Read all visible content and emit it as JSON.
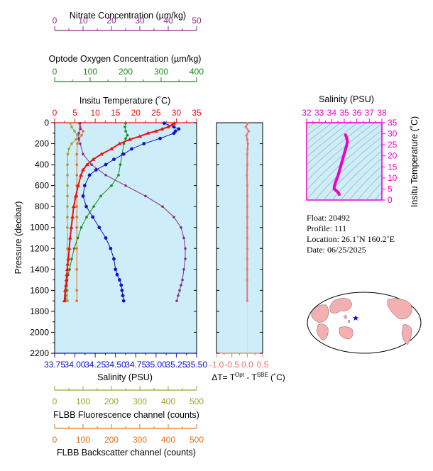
{
  "colors": {
    "nitrate": "#8b2a8b",
    "oxygen": "#1a8a1a",
    "temperature": "#ee1111",
    "salinity": "#1111cc",
    "fluorescence": "#a0a030",
    "backscatter": "#e0701a",
    "delta": "#f07070",
    "ts": "#ee00cc",
    "panel_bg": "#cdeef8",
    "map_land": "#f4b0b0",
    "map_star": "#0000cc"
  },
  "axes": {
    "nitrate": {
      "title": "Nitrate Concentration (µm/kg)",
      "ticks": [
        "0",
        "10",
        "20",
        "30",
        "40",
        "50"
      ],
      "range": [
        0,
        50
      ]
    },
    "oxygen": {
      "title": "Optode Oxygen Concentration (µm/kg)",
      "ticks": [
        "0",
        "100",
        "200",
        "300",
        "400"
      ],
      "range": [
        0,
        400
      ]
    },
    "temperature": {
      "title": "Insitu Temperature (˚C)",
      "ticks": [
        "0",
        "5",
        "10",
        "15",
        "20",
        "25",
        "30",
        "35"
      ],
      "range": [
        0,
        35
      ]
    },
    "pressure": {
      "title": "Pressure (decibar)",
      "ticks": [
        "0",
        "200",
        "400",
        "600",
        "800",
        "1000",
        "1200",
        "1400",
        "1600",
        "1800",
        "2000",
        "2200"
      ],
      "range": [
        0,
        2200
      ]
    },
    "salinity": {
      "title": "Salinity (PSU)",
      "ticks": [
        "33.75",
        "34.00",
        "34.25",
        "34.50",
        "34.75",
        "35.00",
        "35.25",
        "35.50"
      ],
      "range": [
        33.75,
        35.5
      ]
    },
    "fluorescence": {
      "title": "FLBB Fluorescence channel (counts)",
      "ticks": [
        "0",
        "100",
        "200",
        "300",
        "400",
        "500"
      ],
      "range": [
        0,
        500
      ]
    },
    "backscatter": {
      "title": "FLBB Backscatter channel (counts)",
      "ticks": [
        "0",
        "100",
        "200",
        "300",
        "400",
        "500"
      ],
      "range": [
        0,
        500
      ]
    },
    "delta": {
      "title": "ΔT= T",
      "sup1": "Opt",
      "mid": " - T",
      "sup2": "SBE",
      "tail": " (˚C)",
      "ticks": [
        "-1.0",
        "-0.5",
        "0.0",
        "0.5"
      ],
      "range": [
        -1.0,
        0.5
      ]
    },
    "ts_salinity": {
      "title": "Salinity (PSU)",
      "ticks": [
        "32",
        "33",
        "34",
        "35",
        "36",
        "37",
        "38"
      ],
      "range": [
        32,
        38
      ]
    },
    "ts_temperature": {
      "title": "Insitu Temperature (˚C)",
      "ticks": [
        "0",
        "5",
        "10",
        "15",
        "20",
        "25",
        "30",
        "35"
      ],
      "range": [
        0,
        35
      ]
    }
  },
  "info": {
    "float": "Float:  20492",
    "profile": "Profile:  111",
    "location": "Location:  26.1˚N  160.2˚E",
    "date": "Date:  06/25/2025"
  },
  "chart_data": [
    {
      "type": "line",
      "panel": "profiles",
      "ylabel": "Pressure (decibar)",
      "ylim": [
        2200,
        0
      ],
      "series": [
        {
          "name": "Insitu Temperature (˚C)",
          "axis": "temperature",
          "x": [
            29.5,
            29.0,
            28.0,
            26.5,
            25.0,
            23.0,
            21.0,
            18.5,
            16.0,
            14.0,
            11.5,
            9.5,
            8.0,
            7.0,
            6.5,
            5.8,
            5.2,
            4.7,
            4.4,
            4.1,
            3.8,
            3.6,
            3.4,
            3.2,
            3.1,
            3.0,
            2.9,
            2.8,
            2.6,
            2.4
          ],
          "y": [
            5,
            20,
            40,
            60,
            80,
            100,
            130,
            160,
            200,
            250,
            300,
            350,
            400,
            450,
            500,
            600,
            700,
            800,
            900,
            1000,
            1100,
            1200,
            1300,
            1350,
            1400,
            1450,
            1500,
            1550,
            1600,
            1700
          ]
        },
        {
          "name": "Salinity (PSU)",
          "axis": "salinity",
          "x": [
            35.1,
            35.22,
            35.28,
            35.24,
            35.22,
            35.05,
            34.85,
            34.7,
            34.6,
            34.48,
            34.38,
            34.26,
            34.18,
            34.12,
            34.1,
            34.14,
            34.22,
            34.3,
            34.38,
            34.44,
            34.48,
            34.5,
            34.52,
            34.55,
            34.57,
            34.58,
            34.59,
            34.6
          ],
          "y": [
            5,
            40,
            60,
            80,
            100,
            150,
            200,
            250,
            300,
            350,
            400,
            450,
            500,
            600,
            700,
            800,
            900,
            1000,
            1100,
            1200,
            1300,
            1400,
            1450,
            1500,
            1550,
            1600,
            1650,
            1700
          ]
        },
        {
          "name": "Nitrate Concentration (µm/kg)",
          "axis": "nitrate",
          "x": [
            9.0,
            9.0,
            8.5,
            8.5,
            9.0,
            10.0,
            13.0,
            18.0,
            25.0,
            32.0,
            38.0,
            42.0,
            44.5,
            45.5,
            46.0,
            46.0,
            45.5,
            45.0,
            44.5,
            44.0,
            43.5,
            43.0
          ],
          "y": [
            5,
            60,
            100,
            150,
            200,
            300,
            400,
            500,
            600,
            700,
            800,
            900,
            1000,
            1100,
            1200,
            1300,
            1400,
            1500,
            1550,
            1600,
            1650,
            1700
          ]
        },
        {
          "name": "Optode Oxygen Concentration (µm/kg)",
          "axis": "oxygen",
          "x": [
            200,
            198,
            200,
            205,
            200,
            195,
            190,
            185,
            180,
            160,
            130,
            110,
            90,
            75,
            65,
            55,
            48,
            42,
            38,
            35,
            33,
            32,
            31,
            30,
            29
          ],
          "y": [
            5,
            40,
            80,
            120,
            150,
            200,
            300,
            400,
            500,
            600,
            700,
            800,
            900,
            1000,
            1100,
            1200,
            1300,
            1400,
            1450,
            1500,
            1550,
            1600,
            1650,
            1680,
            1700
          ]
        },
        {
          "name": "FLBB Fluorescence channel (counts)",
          "axis": "fluorescence",
          "x": [
            55,
            60,
            70,
            80,
            75,
            60,
            50,
            46,
            45,
            45,
            45,
            45,
            45,
            45,
            45,
            45,
            45,
            45,
            45
          ],
          "y": [
            5,
            40,
            80,
            120,
            160,
            200,
            250,
            300,
            400,
            500,
            600,
            700,
            800,
            900,
            1000,
            1200,
            1400,
            1600,
            1700
          ]
        },
        {
          "name": "FLBB Backscatter channel (counts)",
          "axis": "backscatter",
          "x": [
            85,
            90,
            100,
            95,
            85,
            80,
            78,
            78,
            78,
            78,
            78,
            78,
            78,
            78,
            78,
            78,
            78,
            78
          ],
          "y": [
            5,
            40,
            80,
            120,
            160,
            200,
            300,
            400,
            500,
            600,
            700,
            800,
            900,
            1000,
            1200,
            1400,
            1600,
            1700
          ]
        }
      ]
    },
    {
      "type": "line",
      "panel": "delta",
      "series": [
        {
          "name": "ΔT",
          "x": [
            0.02,
            -0.05,
            0.05,
            -0.03,
            0.0,
            0.02,
            0.01,
            0.0,
            0.0,
            -0.01,
            0.0,
            0.0,
            0.0,
            0.0,
            0.0,
            0.0,
            0.0,
            0.0,
            0.0,
            0.0,
            0.0
          ],
          "y": [
            5,
            40,
            80,
            120,
            160,
            200,
            250,
            300,
            400,
            500,
            600,
            700,
            800,
            900,
            1000,
            1100,
            1200,
            1300,
            1400,
            1500,
            1700
          ]
        }
      ]
    },
    {
      "type": "line",
      "panel": "ts",
      "xlabel": "Salinity (PSU)",
      "ylabel": "Insitu Temperature (˚C)",
      "xlim": [
        32,
        38
      ],
      "ylim": [
        0,
        35
      ],
      "series": [
        {
          "name": "T-S",
          "x": [
            35.1,
            35.2,
            35.25,
            35.2,
            35.1,
            35.0,
            34.9,
            34.8,
            34.7,
            34.6,
            34.5,
            34.4,
            34.3,
            34.25,
            34.2,
            34.2,
            34.3,
            34.4,
            34.5,
            34.55,
            34.6
          ],
          "y": [
            29.5,
            28.0,
            26.5,
            25.0,
            23.0,
            21.0,
            19.0,
            17.0,
            15.0,
            13.0,
            11.0,
            9.5,
            8.0,
            7.0,
            6.0,
            5.0,
            4.5,
            4.0,
            3.5,
            3.0,
            2.5
          ]
        }
      ]
    }
  ]
}
